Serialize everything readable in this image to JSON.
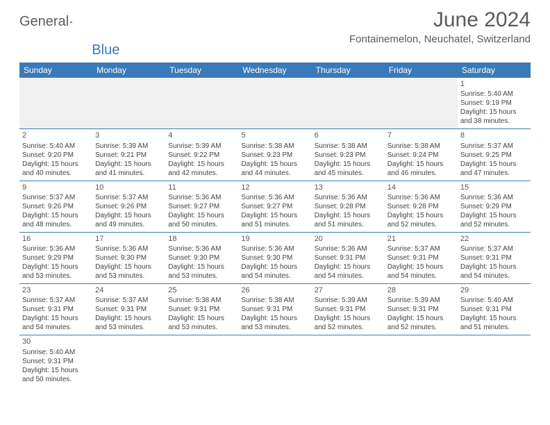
{
  "logo": {
    "text_main": "General",
    "text_accent": "Blue"
  },
  "title": "June 2024",
  "location": "Fontainemelon, Neuchatel, Switzerland",
  "colors": {
    "header_bg": "#3a7ab8",
    "header_text": "#ffffff",
    "cell_border": "#3a7ab8",
    "empty_bg": "#f0f0f0",
    "text": "#444444",
    "title_text": "#5a5a5a"
  },
  "day_headers": [
    "Sunday",
    "Monday",
    "Tuesday",
    "Wednesday",
    "Thursday",
    "Friday",
    "Saturday"
  ],
  "weeks": [
    [
      null,
      null,
      null,
      null,
      null,
      null,
      {
        "n": "1",
        "sr": "Sunrise: 5:40 AM",
        "ss": "Sunset: 9:19 PM",
        "d1": "Daylight: 15 hours",
        "d2": "and 38 minutes."
      }
    ],
    [
      {
        "n": "2",
        "sr": "Sunrise: 5:40 AM",
        "ss": "Sunset: 9:20 PM",
        "d1": "Daylight: 15 hours",
        "d2": "and 40 minutes."
      },
      {
        "n": "3",
        "sr": "Sunrise: 5:39 AM",
        "ss": "Sunset: 9:21 PM",
        "d1": "Daylight: 15 hours",
        "d2": "and 41 minutes."
      },
      {
        "n": "4",
        "sr": "Sunrise: 5:39 AM",
        "ss": "Sunset: 9:22 PM",
        "d1": "Daylight: 15 hours",
        "d2": "and 42 minutes."
      },
      {
        "n": "5",
        "sr": "Sunrise: 5:38 AM",
        "ss": "Sunset: 9:23 PM",
        "d1": "Daylight: 15 hours",
        "d2": "and 44 minutes."
      },
      {
        "n": "6",
        "sr": "Sunrise: 5:38 AM",
        "ss": "Sunset: 9:23 PM",
        "d1": "Daylight: 15 hours",
        "d2": "and 45 minutes."
      },
      {
        "n": "7",
        "sr": "Sunrise: 5:38 AM",
        "ss": "Sunset: 9:24 PM",
        "d1": "Daylight: 15 hours",
        "d2": "and 46 minutes."
      },
      {
        "n": "8",
        "sr": "Sunrise: 5:37 AM",
        "ss": "Sunset: 9:25 PM",
        "d1": "Daylight: 15 hours",
        "d2": "and 47 minutes."
      }
    ],
    [
      {
        "n": "9",
        "sr": "Sunrise: 5:37 AM",
        "ss": "Sunset: 9:26 PM",
        "d1": "Daylight: 15 hours",
        "d2": "and 48 minutes."
      },
      {
        "n": "10",
        "sr": "Sunrise: 5:37 AM",
        "ss": "Sunset: 9:26 PM",
        "d1": "Daylight: 15 hours",
        "d2": "and 49 minutes."
      },
      {
        "n": "11",
        "sr": "Sunrise: 5:36 AM",
        "ss": "Sunset: 9:27 PM",
        "d1": "Daylight: 15 hours",
        "d2": "and 50 minutes."
      },
      {
        "n": "12",
        "sr": "Sunrise: 5:36 AM",
        "ss": "Sunset: 9:27 PM",
        "d1": "Daylight: 15 hours",
        "d2": "and 51 minutes."
      },
      {
        "n": "13",
        "sr": "Sunrise: 5:36 AM",
        "ss": "Sunset: 9:28 PM",
        "d1": "Daylight: 15 hours",
        "d2": "and 51 minutes."
      },
      {
        "n": "14",
        "sr": "Sunrise: 5:36 AM",
        "ss": "Sunset: 9:28 PM",
        "d1": "Daylight: 15 hours",
        "d2": "and 52 minutes."
      },
      {
        "n": "15",
        "sr": "Sunrise: 5:36 AM",
        "ss": "Sunset: 9:29 PM",
        "d1": "Daylight: 15 hours",
        "d2": "and 52 minutes."
      }
    ],
    [
      {
        "n": "16",
        "sr": "Sunrise: 5:36 AM",
        "ss": "Sunset: 9:29 PM",
        "d1": "Daylight: 15 hours",
        "d2": "and 53 minutes."
      },
      {
        "n": "17",
        "sr": "Sunrise: 5:36 AM",
        "ss": "Sunset: 9:30 PM",
        "d1": "Daylight: 15 hours",
        "d2": "and 53 minutes."
      },
      {
        "n": "18",
        "sr": "Sunrise: 5:36 AM",
        "ss": "Sunset: 9:30 PM",
        "d1": "Daylight: 15 hours",
        "d2": "and 53 minutes."
      },
      {
        "n": "19",
        "sr": "Sunrise: 5:36 AM",
        "ss": "Sunset: 9:30 PM",
        "d1": "Daylight: 15 hours",
        "d2": "and 54 minutes."
      },
      {
        "n": "20",
        "sr": "Sunrise: 5:36 AM",
        "ss": "Sunset: 9:31 PM",
        "d1": "Daylight: 15 hours",
        "d2": "and 54 minutes."
      },
      {
        "n": "21",
        "sr": "Sunrise: 5:37 AM",
        "ss": "Sunset: 9:31 PM",
        "d1": "Daylight: 15 hours",
        "d2": "and 54 minutes."
      },
      {
        "n": "22",
        "sr": "Sunrise: 5:37 AM",
        "ss": "Sunset: 9:31 PM",
        "d1": "Daylight: 15 hours",
        "d2": "and 54 minutes."
      }
    ],
    [
      {
        "n": "23",
        "sr": "Sunrise: 5:37 AM",
        "ss": "Sunset: 9:31 PM",
        "d1": "Daylight: 15 hours",
        "d2": "and 54 minutes."
      },
      {
        "n": "24",
        "sr": "Sunrise: 5:37 AM",
        "ss": "Sunset: 9:31 PM",
        "d1": "Daylight: 15 hours",
        "d2": "and 53 minutes."
      },
      {
        "n": "25",
        "sr": "Sunrise: 5:38 AM",
        "ss": "Sunset: 9:31 PM",
        "d1": "Daylight: 15 hours",
        "d2": "and 53 minutes."
      },
      {
        "n": "26",
        "sr": "Sunrise: 5:38 AM",
        "ss": "Sunset: 9:31 PM",
        "d1": "Daylight: 15 hours",
        "d2": "and 53 minutes."
      },
      {
        "n": "27",
        "sr": "Sunrise: 5:39 AM",
        "ss": "Sunset: 9:31 PM",
        "d1": "Daylight: 15 hours",
        "d2": "and 52 minutes."
      },
      {
        "n": "28",
        "sr": "Sunrise: 5:39 AM",
        "ss": "Sunset: 9:31 PM",
        "d1": "Daylight: 15 hours",
        "d2": "and 52 minutes."
      },
      {
        "n": "29",
        "sr": "Sunrise: 5:40 AM",
        "ss": "Sunset: 9:31 PM",
        "d1": "Daylight: 15 hours",
        "d2": "and 51 minutes."
      }
    ],
    [
      {
        "n": "30",
        "sr": "Sunrise: 5:40 AM",
        "ss": "Sunset: 9:31 PM",
        "d1": "Daylight: 15 hours",
        "d2": "and 50 minutes."
      },
      null,
      null,
      null,
      null,
      null,
      null
    ]
  ]
}
